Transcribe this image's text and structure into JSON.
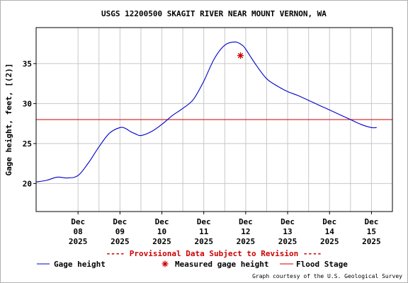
{
  "chart_data": {
    "type": "line",
    "title": "USGS 12200500 SKAGIT RIVER NEAR MOUNT VERNON, WA",
    "ylabel": "Gage height, feet, [(2)]",
    "xlabel": "",
    "xlim": [
      "2025-12-07T00:00",
      "2025-12-15T12:00"
    ],
    "ylim": [
      16.5,
      39.5
    ],
    "y_ticks": [
      20,
      25,
      30,
      35
    ],
    "x_ticks": [
      {
        "date": "2025-12-08",
        "label": [
          "Dec",
          "08",
          "2025"
        ]
      },
      {
        "date": "2025-12-09",
        "label": [
          "Dec",
          "09",
          "2025"
        ]
      },
      {
        "date": "2025-12-10",
        "label": [
          "Dec",
          "10",
          "2025"
        ]
      },
      {
        "date": "2025-12-11",
        "label": [
          "Dec",
          "11",
          "2025"
        ]
      },
      {
        "date": "2025-12-12",
        "label": [
          "Dec",
          "12",
          "2025"
        ]
      },
      {
        "date": "2025-12-13",
        "label": [
          "Dec",
          "13",
          "2025"
        ]
      },
      {
        "date": "2025-12-14",
        "label": [
          "Dec",
          "14",
          "2025"
        ]
      },
      {
        "date": "2025-12-15",
        "label": [
          "Dec",
          "15",
          "2025"
        ]
      }
    ],
    "grid": true,
    "flood_stage": 28.0,
    "series": [
      {
        "name": "Gage height",
        "color": "#0000cc",
        "x": [
          "2025-12-07T00:00",
          "2025-12-07T06:00",
          "2025-12-07T12:00",
          "2025-12-07T18:00",
          "2025-12-08T00:00",
          "2025-12-08T06:00",
          "2025-12-08T12:00",
          "2025-12-08T18:00",
          "2025-12-09T00:00",
          "2025-12-09T03:00",
          "2025-12-09T06:00",
          "2025-12-09T09:00",
          "2025-12-09T12:00",
          "2025-12-09T18:00",
          "2025-12-10T00:00",
          "2025-12-10T06:00",
          "2025-12-10T12:00",
          "2025-12-10T18:00",
          "2025-12-11T00:00",
          "2025-12-11T06:00",
          "2025-12-11T12:00",
          "2025-12-11T18:00",
          "2025-12-11T22:00",
          "2025-12-12T00:00",
          "2025-12-12T06:00",
          "2025-12-12T12:00",
          "2025-12-12T18:00",
          "2025-12-13T00:00",
          "2025-12-13T06:00",
          "2025-12-13T12:00",
          "2025-12-13T18:00",
          "2025-12-14T00:00",
          "2025-12-14T06:00",
          "2025-12-14T12:00",
          "2025-12-14T18:00",
          "2025-12-15T00:00",
          "2025-12-15T03:00"
        ],
        "y": [
          20.2,
          20.4,
          20.8,
          20.7,
          21.0,
          22.6,
          24.6,
          26.3,
          27.0,
          26.9,
          26.5,
          26.2,
          26.0,
          26.5,
          27.4,
          28.5,
          29.4,
          30.5,
          32.8,
          35.6,
          37.3,
          37.7,
          37.3,
          36.8,
          34.8,
          33.1,
          32.2,
          31.5,
          31.0,
          30.4,
          29.8,
          29.2,
          28.6,
          28.0,
          27.4,
          27.0,
          27.0
        ]
      }
    ],
    "markers": [
      {
        "name": "Measured gage height",
        "x": "2025-12-11T21:00",
        "y": 36.0,
        "color": "#cc0000"
      }
    ],
    "notice": "---- Provisional Data Subject to Revision ----",
    "legend": [
      {
        "label": "Gage height",
        "kind": "line",
        "color": "#0000cc"
      },
      {
        "label": "Measured gage height",
        "kind": "star",
        "color": "#cc0000"
      },
      {
        "label": "Flood Stage",
        "kind": "line",
        "color": "#cc0000"
      }
    ],
    "credit": "Graph courtesy of the U.S. Geological Survey"
  }
}
